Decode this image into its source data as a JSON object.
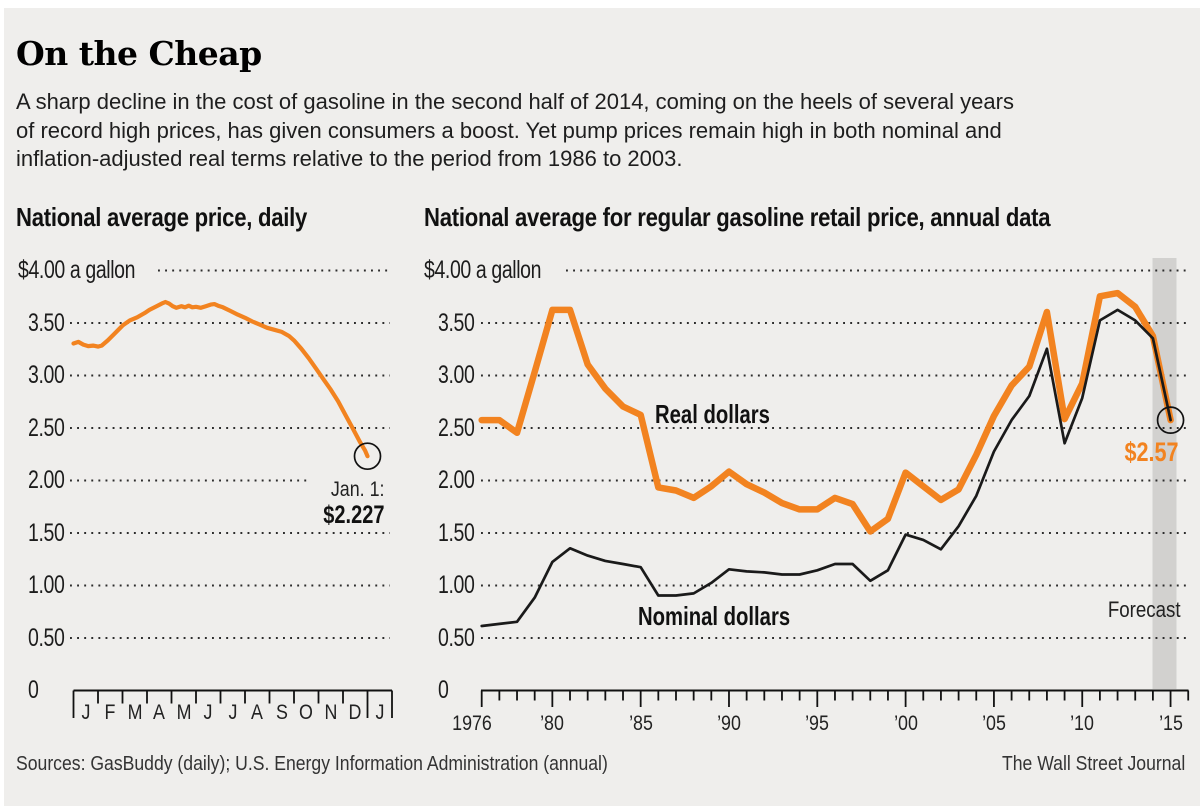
{
  "colors": {
    "background": "#efeeec",
    "page_border": "#ffffff",
    "accent_orange": "#f28320",
    "line_black": "#1a1a1a",
    "grid_dot": "#2c2c2c",
    "axis": "#111111",
    "forecast_band": "#d2d1cf"
  },
  "header": {
    "title": "On the Cheap",
    "subtitle_lines": [
      "A sharp decline in the cost of gasoline in the second half of 2014, coming on the heels of several years",
      "of record high prices, has given consumers a boost. Yet pump prices remain high in both nominal and",
      "inflation-adjusted real terms relative to the period from 1986 to 2003."
    ]
  },
  "left_chart": {
    "title": "National average price, daily",
    "unit_label": "$4.00 a gallon",
    "y_labels": [
      "3.50",
      "3.00",
      "2.50",
      "2.00",
      "1.50",
      "1.00",
      "0.50",
      "0"
    ],
    "x_labels": [
      "J",
      "F",
      "M",
      "A",
      "M",
      "J",
      "J",
      "A",
      "S",
      "O",
      "N",
      "D",
      "J"
    ],
    "annotation": {
      "label": "Jan. 1:",
      "value": "$2.227"
    }
  },
  "right_chart": {
    "title": "National average for regular gasoline retail price, annual data",
    "unit_label": "$4.00 a gallon",
    "y_labels": [
      "3.50",
      "3.00",
      "2.50",
      "2.00",
      "1.50",
      "1.00",
      "0.50",
      "0"
    ],
    "x_labels": [
      {
        "label": "1976",
        "year": 1976
      },
      {
        "label": "’80",
        "year": 1980
      },
      {
        "label": "’85",
        "year": 1985
      },
      {
        "label": "’90",
        "year": 1990
      },
      {
        "label": "’95",
        "year": 1995
      },
      {
        "label": "’00",
        "year": 2000
      },
      {
        "label": "’05",
        "year": 2005
      },
      {
        "label": "’10",
        "year": 2010
      },
      {
        "label": "’15",
        "year": 2015
      }
    ],
    "real_label": "Real dollars",
    "nominal_label": "Nominal dollars",
    "forecast_label": "Forecast",
    "end_value_label": "$2.57"
  },
  "footer": {
    "sources": "Sources: GasBuddy (daily); U.S. Energy Information Administration (annual)",
    "credit": "The Wall Street Journal"
  },
  "chart_data": [
    {
      "type": "line",
      "title": "National average price, daily",
      "ylabel": "$ a gallon",
      "ylim": [
        0,
        4
      ],
      "x_unit": "months since Jan 1, 2014 (0 = Jan 1, 2014; 12 = Jan 1, 2015)",
      "x": [
        0,
        0.2,
        0.4,
        0.6,
        0.8,
        1.0,
        1.15,
        1.4,
        1.7,
        2.0,
        2.3,
        2.6,
        2.9,
        3.1,
        3.35,
        3.6,
        3.75,
        3.9,
        4.05,
        4.2,
        4.4,
        4.55,
        4.7,
        4.85,
        5.0,
        5.2,
        5.4,
        5.6,
        5.75,
        5.9,
        6.1,
        6.4,
        6.7,
        7.0,
        7.3,
        7.6,
        7.9,
        8.2,
        8.5,
        8.8,
        9.0,
        9.3,
        9.6,
        9.9,
        10.2,
        10.5,
        10.8,
        11.1,
        11.4,
        11.7,
        11.9,
        12.0
      ],
      "y": [
        3.3,
        3.315,
        3.29,
        3.275,
        3.28,
        3.27,
        3.28,
        3.33,
        3.4,
        3.47,
        3.52,
        3.55,
        3.59,
        3.62,
        3.65,
        3.68,
        3.695,
        3.68,
        3.655,
        3.64,
        3.655,
        3.645,
        3.66,
        3.645,
        3.65,
        3.64,
        3.655,
        3.67,
        3.675,
        3.66,
        3.645,
        3.61,
        3.575,
        3.545,
        3.51,
        3.48,
        3.45,
        3.43,
        3.41,
        3.37,
        3.33,
        3.25,
        3.16,
        3.06,
        2.96,
        2.86,
        2.75,
        2.62,
        2.49,
        2.36,
        2.28,
        2.227
      ],
      "end_annotation": {
        "label": "Jan. 1:",
        "value": 2.227
      }
    },
    {
      "type": "line",
      "title": "National average for regular gasoline retail price, annual data",
      "ylabel": "$ a gallon",
      "ylim": [
        0,
        4
      ],
      "categories": [
        1976,
        1977,
        1978,
        1979,
        1980,
        1981,
        1982,
        1983,
        1984,
        1985,
        1986,
        1987,
        1988,
        1989,
        1990,
        1991,
        1992,
        1993,
        1994,
        1995,
        1996,
        1997,
        1998,
        1999,
        2000,
        2001,
        2002,
        2003,
        2004,
        2005,
        2006,
        2007,
        2008,
        2009,
        2010,
        2011,
        2012,
        2013,
        2014,
        2015
      ],
      "series": [
        {
          "name": "Real dollars",
          "color": "#f28320",
          "values": [
            2.57,
            2.57,
            2.45,
            3.03,
            3.62,
            3.62,
            3.1,
            2.87,
            2.7,
            2.62,
            1.93,
            1.9,
            1.83,
            1.94,
            2.08,
            1.96,
            1.88,
            1.78,
            1.72,
            1.72,
            1.83,
            1.77,
            1.51,
            1.63,
            2.07,
            1.94,
            1.81,
            1.91,
            2.24,
            2.61,
            2.9,
            3.08,
            3.6,
            2.58,
            2.92,
            3.75,
            3.78,
            3.65,
            3.37,
            2.57
          ]
        },
        {
          "name": "Nominal dollars",
          "color": "#1a1a1a",
          "values": [
            0.61,
            0.63,
            0.65,
            0.88,
            1.22,
            1.35,
            1.28,
            1.23,
            1.2,
            1.17,
            0.9,
            0.9,
            0.92,
            1.02,
            1.15,
            1.13,
            1.12,
            1.1,
            1.1,
            1.14,
            1.2,
            1.2,
            1.04,
            1.14,
            1.48,
            1.43,
            1.34,
            1.56,
            1.85,
            2.27,
            2.57,
            2.8,
            3.25,
            2.35,
            2.78,
            3.52,
            3.62,
            3.52,
            3.35,
            2.57
          ]
        }
      ],
      "forecast_year": 2015,
      "end_annotation": {
        "value": 2.57
      },
      "legend_position": "inline labels on chart",
      "grid": "dotted horizontal"
    }
  ]
}
